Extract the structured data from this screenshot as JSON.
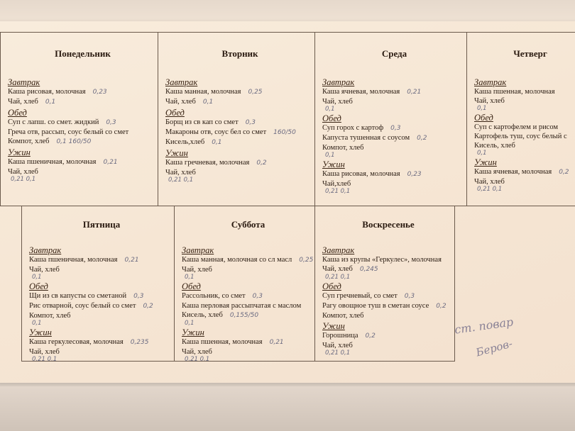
{
  "days": [
    {
      "name": "Понедельник",
      "meals": [
        {
          "label": "Завтрак",
          "items": [
            {
              "text": "Каша рисовая, молочная",
              "note": "0,23"
            },
            {
              "text": "Чай, хлеб",
              "note": "0,1"
            }
          ],
          "hand": ""
        },
        {
          "label": "Обед",
          "items": [
            {
              "text": "Суп с лапш. со смет. жидкий",
              "note": "0,3"
            },
            {
              "text": "Греча отв, рассып, соус белый со смет",
              "note": ""
            },
            {
              "text": "Компот, хлеб",
              "note": "0,1   160/50"
            }
          ],
          "hand": ""
        },
        {
          "label": "Ужин",
          "items": [
            {
              "text": "Каша пшеничная, молочная",
              "note": "0,21"
            },
            {
              "text": "Чай, хлеб",
              "note": ""
            }
          ],
          "hand": "0,21  0,1"
        }
      ]
    },
    {
      "name": "Вторник",
      "meals": [
        {
          "label": "Завтрак",
          "items": [
            {
              "text": "Каша манная, молочная",
              "note": "0,25"
            },
            {
              "text": "Чай, хлеб",
              "note": "0,1"
            }
          ],
          "hand": ""
        },
        {
          "label": "Обед",
          "items": [
            {
              "text": "Борщ из св кап со смет",
              "note": "0,3"
            },
            {
              "text": "Макароны отв, соус бел со смет",
              "note": "160/50"
            },
            {
              "text": "Кисель,хлеб",
              "note": "0,1"
            }
          ],
          "hand": ""
        },
        {
          "label": "Ужин",
          "items": [
            {
              "text": "Каша гречневая, молочная",
              "note": "0,2"
            },
            {
              "text": "Чай, хлеб",
              "note": ""
            }
          ],
          "hand": "0,21  0,1"
        }
      ]
    },
    {
      "name": "Среда",
      "meals": [
        {
          "label": "Завтрак",
          "items": [
            {
              "text": "Каша ячневая, молочная",
              "note": "0,21"
            },
            {
              "text": "Чай, хлеб",
              "note": ""
            }
          ],
          "hand": "0,1"
        },
        {
          "label": "Обед",
          "items": [
            {
              "text": "Суп горох с картоф",
              "note": "0,3"
            },
            {
              "text": "Капуста тушенная с соусом",
              "note": "0,2"
            },
            {
              "text": "Компот, хлеб",
              "note": ""
            }
          ],
          "hand": "0,1"
        },
        {
          "label": "Ужин",
          "items": [
            {
              "text": "Каша рисовая, молочная",
              "note": "0,23"
            },
            {
              "text": "Чай,хлеб",
              "note": ""
            }
          ],
          "hand": "0,21  0,1"
        }
      ]
    },
    {
      "name": "Четверг",
      "meals": [
        {
          "label": "Завтрак",
          "items": [
            {
              "text": "Каша пшенная, молочная",
              "note": ""
            },
            {
              "text": "Чай, хлеб",
              "note": ""
            }
          ],
          "hand": "0,1"
        },
        {
          "label": "Обед",
          "items": [
            {
              "text": "Суп с картофелем и рисом",
              "note": ""
            },
            {
              "text": "Картофель туш, соус белый с",
              "note": ""
            },
            {
              "text": "Кисель, хлеб",
              "note": ""
            }
          ],
          "hand": "0,1"
        },
        {
          "label": "Ужин",
          "items": [
            {
              "text": "Каша ячневая, молочная",
              "note": "0,2"
            },
            {
              "text": "Чай, хлеб",
              "note": ""
            }
          ],
          "hand": "0,21  0,1"
        }
      ]
    },
    {
      "name": "Пятница",
      "meals": [
        {
          "label": "Завтрак",
          "items": [
            {
              "text": "Каша пшеничная, молочная",
              "note": "0,21"
            },
            {
              "text": "Чай, хлеб",
              "note": ""
            }
          ],
          "hand": "0,1"
        },
        {
          "label": "Обед",
          "items": [
            {
              "text": "Щи из св капусты со сметаной",
              "note": "0,3"
            },
            {
              "text": "Рис отварной, соус белый со смет",
              "note": "0,2"
            },
            {
              "text": "Компот, хлеб",
              "note": ""
            }
          ],
          "hand": "0,1"
        },
        {
          "label": "Ужин",
          "items": [
            {
              "text": "Каша геркулесовая, молочная",
              "note": "0,235"
            },
            {
              "text": "Чай, хлеб",
              "note": ""
            }
          ],
          "hand": "0,21  0,1"
        }
      ]
    },
    {
      "name": "Суббота",
      "meals": [
        {
          "label": "Завтрак",
          "items": [
            {
              "text": "Каша манная, молочная со сл масл",
              "note": "0,25"
            },
            {
              "text": "Чай, хлеб",
              "note": ""
            }
          ],
          "hand": "0,1"
        },
        {
          "label": "Обед",
          "items": [
            {
              "text": "Рассольник, со смет",
              "note": "0,3"
            },
            {
              "text": "Каша перловая рассыпчатая с маслом",
              "note": ""
            },
            {
              "text": "Кисель, хлеб",
              "note": "0,155/50"
            }
          ],
          "hand": "0,1"
        },
        {
          "label": "Ужин",
          "items": [
            {
              "text": "Каша пшенная, молочная",
              "note": "0,21"
            },
            {
              "text": "Чай, хлеб",
              "note": ""
            }
          ],
          "hand": "0,21  0,1"
        }
      ]
    },
    {
      "name": "Воскресенье",
      "meals": [
        {
          "label": "Завтрак",
          "items": [
            {
              "text": "Каша из крупы «Геркулес», молочная",
              "note": ""
            },
            {
              "text": "Чай, хлеб",
              "note": "0,245"
            }
          ],
          "hand": "0,21  0,1"
        },
        {
          "label": "Обед",
          "items": [
            {
              "text": "Суп гречневый, со смет",
              "note": "0,3"
            },
            {
              "text": "Рагу овощное туш в сметан соусе",
              "note": "0,2"
            },
            {
              "text": "Компот, хлеб",
              "note": ""
            }
          ],
          "hand": ""
        },
        {
          "label": "Ужин",
          "items": [
            {
              "text": "Горошница",
              "note": "0,2"
            },
            {
              "text": "Чай, хлеб",
              "note": ""
            }
          ],
          "hand": "0,21  0,1"
        }
      ]
    }
  ],
  "signature": {
    "line1": "ст. повар",
    "line2": "Беров-"
  }
}
